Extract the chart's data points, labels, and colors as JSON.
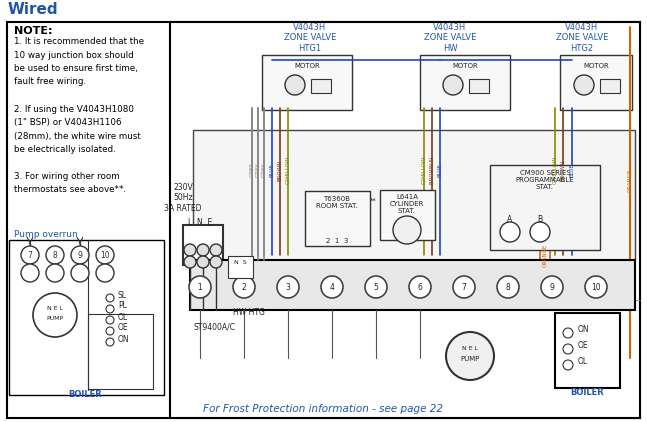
{
  "title": "Wired",
  "bg": "#ffffff",
  "border_color": "#000000",
  "note_color": "#2255aa",
  "footer_text": "For Frost Protection information - see page 22",
  "footer_color": "#2255aa",
  "note_title": "NOTE:",
  "note_lines": [
    "1. It is recommended that the",
    "10 way junction box should",
    "be used to ensure first time,",
    "fault free wiring.",
    "",
    "2. If using the V4043H1080",
    "(1\" BSP) or V4043H1106",
    "(28mm), the white wire must",
    "be electrically isolated.",
    "",
    "3. For wiring other room",
    "thermostats see above**."
  ],
  "pump_overrun": "Pump overrun",
  "label_230v": "230V\n50Hz\n3A RATED",
  "label_lne": "L  N  E",
  "label_st9400": "ST9400A/C",
  "label_hwhtg": "HW HTG",
  "label_boiler": "BOILER",
  "label_pump": "PUMP",
  "label_t6360b": "T6360B\nROOM STAT.",
  "label_l641a": "L641A\nCYLINDER\nSTAT.",
  "label_cm900": "CM900 SERIES\nPROGRAMMABLE\nSTAT.",
  "zv1_label": "V4043H\nZONE VALVE\nHTG1",
  "zv2_label": "V4043H\nZONE VALVE\nHW",
  "zv3_label": "V4043H\nZONE VALVE\nHTG2",
  "wc_grey": "#888888",
  "wc_blue": "#2244bb",
  "wc_brown": "#7a3b10",
  "wc_gyellow": "#888800",
  "wc_orange": "#cc6600",
  "wc_black": "#222222",
  "diag_bg": "#ffffff"
}
